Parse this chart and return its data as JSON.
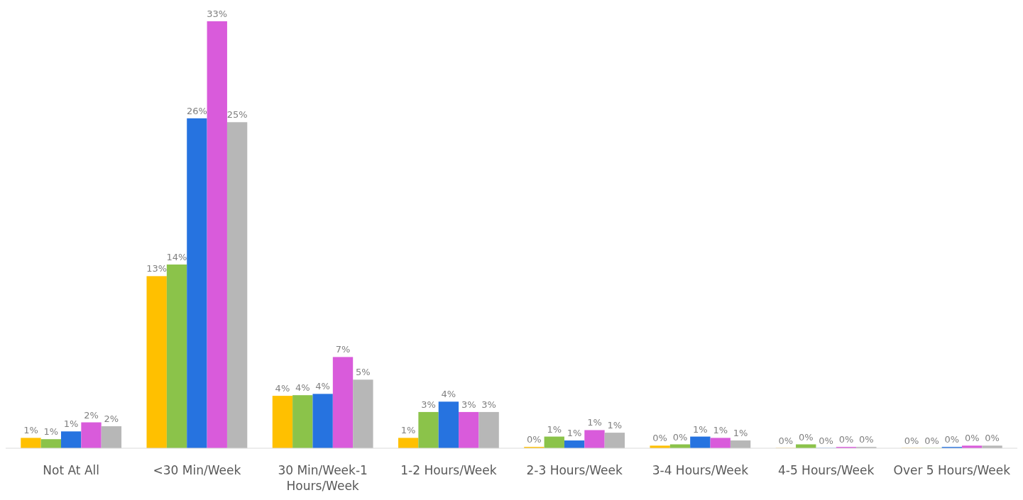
{
  "chart_data": {
    "type": "bar",
    "categories": [
      "Not At All",
      "<30 Min/Week",
      "30 Min/Week-1 Hours/Week",
      "1-2 Hours/Week",
      "2-3 Hours/Week",
      "3-4 Hours/Week",
      "4-5 Hours/Week",
      "Over 5 Hours/Week"
    ],
    "series": [
      {
        "color": "#ffc000",
        "values": [
          0.8,
          13.3,
          4.05,
          0.8,
          0.1,
          0.2,
          0.02,
          0.02
        ],
        "value_labels": [
          "1%",
          "13%",
          "4%",
          "1%",
          "0%",
          "0%",
          "0%",
          "0%"
        ]
      },
      {
        "color": "#8bc34a",
        "values": [
          0.7,
          14.2,
          4.1,
          2.8,
          0.9,
          0.3,
          0.3,
          0.02
        ],
        "value_labels": [
          "1%",
          "14%",
          "4%",
          "3%",
          "1%",
          "0%",
          "0%",
          "0%"
        ]
      },
      {
        "color": "#2673e0",
        "values": [
          1.3,
          25.5,
          4.2,
          3.6,
          0.6,
          0.9,
          0.02,
          0.1
        ],
        "value_labels": [
          "1%",
          "26%",
          "4%",
          "4%",
          "1%",
          "1%",
          "0%",
          "0%"
        ]
      },
      {
        "color": "#d95bdb",
        "values": [
          2,
          33,
          7.05,
          2.8,
          1.4,
          0.8,
          0.1,
          0.2
        ],
        "value_labels": [
          "2%",
          "33%",
          "7%",
          "3%",
          "1%",
          "1%",
          "0%",
          "0%"
        ]
      },
      {
        "color": "#b7b7b7",
        "values": [
          1.7,
          25.2,
          5.3,
          2.8,
          1.2,
          0.6,
          0.1,
          0.2
        ],
        "value_labels": [
          "2%",
          "25%",
          "5%",
          "3%",
          "1%",
          "1%",
          "0%",
          "0%"
        ]
      }
    ]
  }
}
